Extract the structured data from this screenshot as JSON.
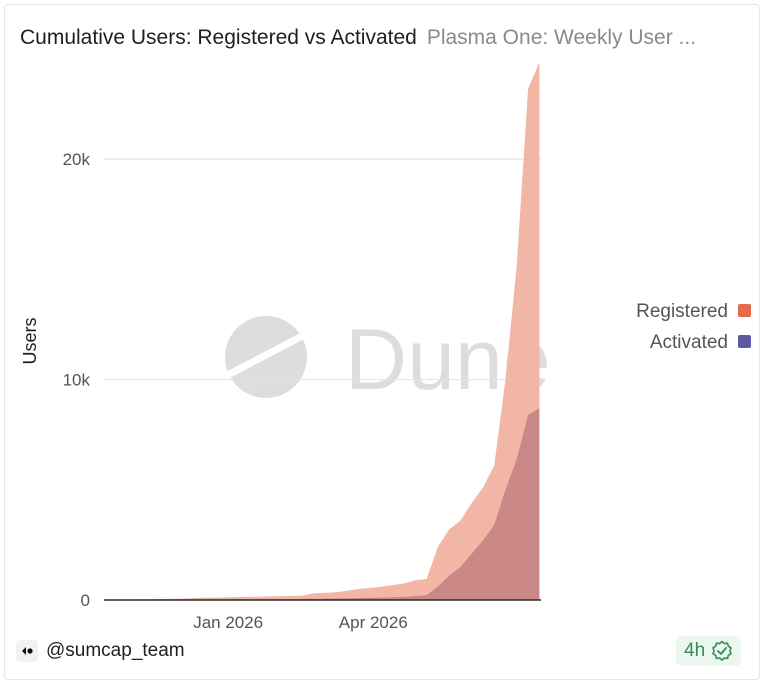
{
  "header": {
    "title": "Cumulative Users: Registered vs Activated",
    "subtitle": "Plasma One: Weekly User ..."
  },
  "watermark": {
    "text": "Dune",
    "icon": "dune-logo-icon"
  },
  "footer": {
    "author": "@sumcap_team",
    "author_icon": "author-logo-icon",
    "age": "4h",
    "age_icon": "check-badge-icon"
  },
  "colors": {
    "registered": "#e8694a",
    "activated": "#5b5aa0",
    "registered_area": "#f1b6a6",
    "overlap_area": "#c98886"
  },
  "chart_data": {
    "type": "area",
    "title": "",
    "xlabel": "",
    "ylabel": "Users",
    "x_ticks": [
      "Jan 2026",
      "Apr 2026"
    ],
    "y_ticks": [
      "0",
      "10k",
      "20k"
    ],
    "y_tick_values": [
      0,
      10000,
      20000
    ],
    "ylim": [
      0,
      24500
    ],
    "grid": true,
    "legend_position": "right",
    "x": [
      "2025-10-20",
      "2025-11-03",
      "2025-11-17",
      "2025-12-01",
      "2025-12-15",
      "2025-12-29",
      "2026-01-12",
      "2026-01-26",
      "2026-02-09",
      "2026-02-16",
      "2026-02-23",
      "2026-03-09",
      "2026-03-23",
      "2026-04-06",
      "2026-04-20",
      "2026-04-27",
      "2026-05-04",
      "2026-05-11",
      "2026-05-18",
      "2026-05-25",
      "2026-06-01",
      "2026-06-08",
      "2026-06-15",
      "2026-06-22",
      "2026-06-29",
      "2026-07-06",
      "2026-07-13"
    ],
    "series": [
      {
        "name": "Registered",
        "values": [
          10,
          20,
          40,
          60,
          100,
          120,
          140,
          160,
          180,
          200,
          300,
          350,
          500,
          600,
          750,
          900,
          950,
          2400,
          3200,
          3600,
          4400,
          5100,
          6100,
          10000,
          15200,
          23200,
          24400
        ]
      },
      {
        "name": "Activated",
        "values": [
          0,
          5,
          10,
          15,
          20,
          25,
          30,
          35,
          40,
          50,
          60,
          70,
          90,
          110,
          140,
          180,
          220,
          600,
          1100,
          1500,
          2100,
          2700,
          3400,
          5000,
          6400,
          8400,
          8700
        ]
      }
    ]
  }
}
